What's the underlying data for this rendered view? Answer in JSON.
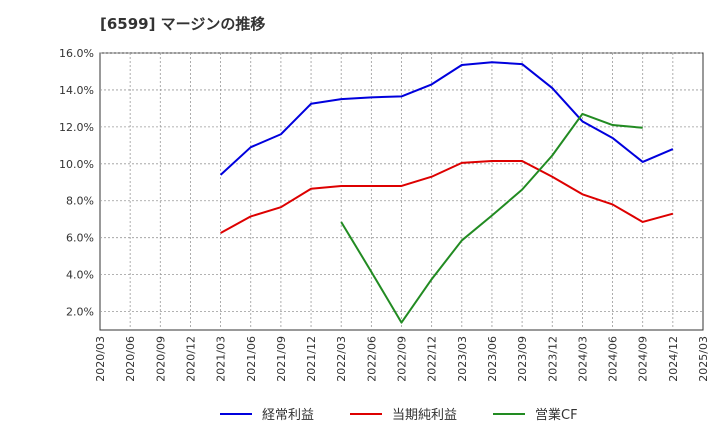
{
  "chart_data": {
    "type": "line",
    "title": "[6599]  マージンの推移",
    "xlabel": "",
    "ylabel": "",
    "ylim": [
      1.0,
      16.0
    ],
    "yticks": [
      2.0,
      4.0,
      6.0,
      8.0,
      10.0,
      12.0,
      14.0,
      16.0
    ],
    "ytick_labels": [
      "2.0%",
      "4.0%",
      "6.0%",
      "8.0%",
      "10.0%",
      "12.0%",
      "14.0%",
      "16.0%"
    ],
    "x": [
      "2020/03",
      "2020/06",
      "2020/09",
      "2020/12",
      "2021/03",
      "2021/06",
      "2021/09",
      "2021/12",
      "2022/03",
      "2022/06",
      "2022/09",
      "2022/12",
      "2023/03",
      "2023/06",
      "2023/09",
      "2023/12",
      "2024/03",
      "2024/06",
      "2024/09",
      "2024/12",
      "2025/03"
    ],
    "grid": true,
    "legend_position": "bottom",
    "series": [
      {
        "name": "経常利益",
        "color": "#0000dd",
        "values": [
          null,
          null,
          null,
          null,
          9.4,
          10.9,
          11.6,
          13.25,
          13.5,
          13.6,
          13.65,
          14.3,
          15.35,
          15.5,
          15.4,
          14.1,
          12.3,
          11.4,
          10.1,
          10.8,
          null
        ]
      },
      {
        "name": "当期純利益",
        "color": "#dd0000",
        "values": [
          null,
          null,
          null,
          null,
          6.25,
          7.15,
          7.65,
          8.65,
          8.8,
          8.8,
          8.8,
          9.3,
          10.05,
          10.15,
          10.15,
          9.3,
          8.35,
          7.8,
          6.85,
          7.3,
          null
        ]
      },
      {
        "name": "営業CF",
        "color": "#228b22",
        "values": [
          null,
          null,
          null,
          null,
          null,
          null,
          null,
          null,
          6.85,
          4.15,
          1.4,
          3.75,
          5.85,
          7.2,
          8.6,
          10.45,
          12.7,
          12.1,
          11.95,
          null,
          null
        ]
      }
    ]
  }
}
